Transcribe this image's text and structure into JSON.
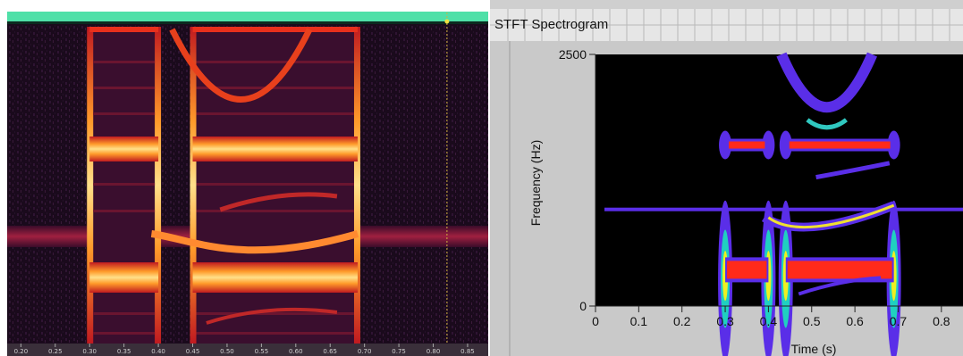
{
  "left_panel": {
    "time_ticks": [
      "0.20",
      "0.25",
      "0.30",
      "0.35",
      "0.40",
      "0.45",
      "0.50",
      "0.55",
      "0.60",
      "0.65",
      "0.70",
      "0.75",
      "0.80",
      "0.85"
    ]
  },
  "colors": {
    "timeline_bar": "#4fe0a8",
    "left_background": "#1a0a1c",
    "left_band": "#ffd34a",
    "left_band_mid": "#d9261f",
    "left_tone": "#8a1a3a",
    "right_background": "#000000",
    "right_contour": "#5a2ee8",
    "right_hot": "#ff2a1a",
    "panel_bg": "#c8c8c8"
  },
  "chart_data": [
    {
      "type": "heatmap",
      "title": "",
      "xlabel": "",
      "ylabel": "",
      "xlim": [
        0.18,
        0.88
      ],
      "x_ticks": [
        0.2,
        0.25,
        0.3,
        0.35,
        0.4,
        0.45,
        0.5,
        0.55,
        0.6,
        0.65,
        0.7,
        0.75,
        0.8,
        0.85
      ],
      "segments": [
        [
          0.3,
          0.4
        ],
        [
          0.45,
          0.69
        ]
      ],
      "tone_band": true,
      "cursor_x": 0.82
    },
    {
      "type": "heatmap",
      "title": "STFT Spectrogram",
      "xlabel": "Time (s)",
      "ylabel": "Frequency (Hz)",
      "xlim": [
        0,
        0.85
      ],
      "ylim": [
        0,
        2500
      ],
      "x_ticks": [
        "0",
        "0.1",
        "0.2",
        "0.3",
        "0.4",
        "0.5",
        "0.6",
        "0.7",
        "0.8"
      ],
      "y_ticks": [
        "0",
        "2500"
      ],
      "segments": [
        [
          0.3,
          0.4
        ],
        [
          0.44,
          0.69
        ]
      ]
    }
  ]
}
